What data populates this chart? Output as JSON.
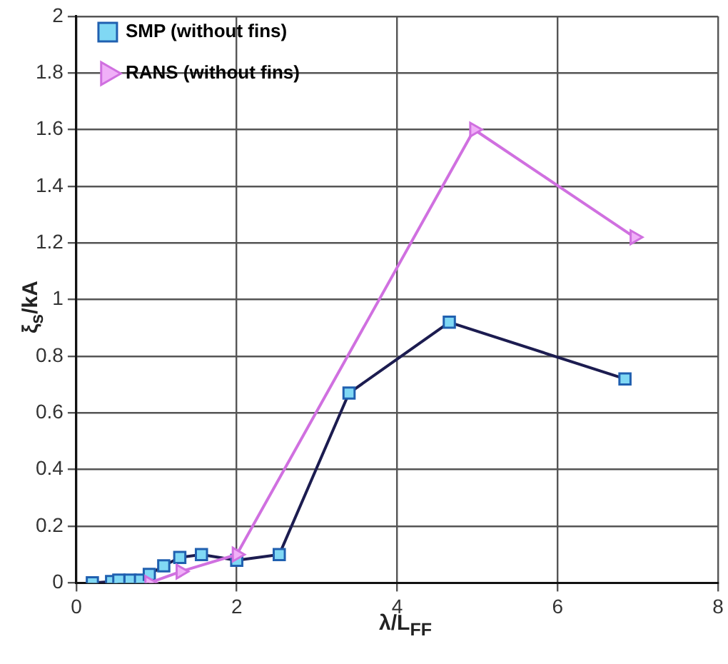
{
  "chart_data": {
    "type": "line",
    "xlabel": "λ/L$_{FF}$",
    "ylabel": "ξ$_{s}$/kA",
    "series": [
      {
        "name": "SMP (without fins)",
        "color": "#1c1c50",
        "marker": "square",
        "x": [
          0.2,
          0.44,
          0.53,
          0.67,
          0.8,
          0.91,
          1.09,
          1.29,
          1.56,
          2.0,
          2.53,
          3.4,
          4.65,
          6.84
        ],
        "values": [
          0,
          0.005,
          0.01,
          0.01,
          0.01,
          0.03,
          0.06,
          0.09,
          0.1,
          0.08,
          0.1,
          0.67,
          0.92,
          0.72
        ]
      },
      {
        "name": "RANS (without fins)",
        "color": "#d070e0",
        "marker": "triangle",
        "x": [
          0.91,
          1.3,
          2.0,
          4.96,
          6.96
        ],
        "values": [
          0,
          0.04,
          0.1,
          1.6,
          1.22
        ]
      }
    ],
    "xlim": [
      0,
      8
    ],
    "xticks": [
      0,
      2,
      4,
      6,
      8
    ],
    "ylim": [
      0,
      2
    ],
    "yticks": [
      0,
      0.2,
      0.4,
      0.6,
      0.8,
      1,
      1.2,
      1.4,
      1.6,
      1.8,
      2
    ],
    "grid": true,
    "legend": "top left",
    "line_style": "solid"
  }
}
